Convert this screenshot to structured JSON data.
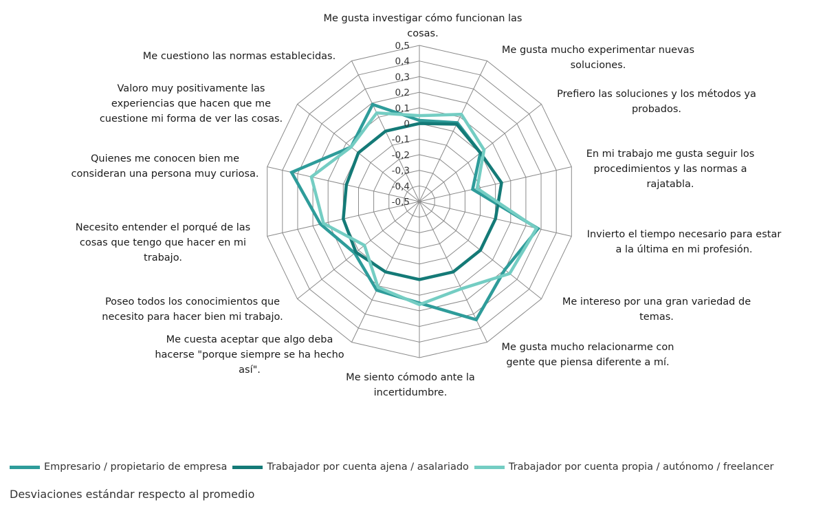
{
  "chart_data": {
    "type": "radar",
    "subtitle": "Desviaciones estándar respecto al promedio",
    "categories": [
      [
        "Me gusta investigar cómo funcionan las",
        "cosas."
      ],
      [
        "Me gusta mucho experimentar nuevas",
        "soluciones."
      ],
      [
        "Prefiero las soluciones y los métodos ya",
        "probados."
      ],
      [
        "En mi trabajo me gusta seguir los",
        "procedimientos y las normas a",
        "rajatabla."
      ],
      [
        "Invierto el tiempo necesario para estar",
        "a la última en mi profesión."
      ],
      [
        "Me intereso por una gran variedad de",
        "temas."
      ],
      [
        "Me gusta mucho relacionarme con",
        "gente que piensa diferente a mí."
      ],
      [
        "Me siento cómodo ante la",
        "incertidumbre."
      ],
      [
        "Me cuesta aceptar que algo deba",
        "hacerse \"porque siempre se ha hecho",
        "así\"."
      ],
      [
        "Poseo todos los conocimientos que",
        "necesito para hacer bien mi trabajo."
      ],
      [
        "Necesito entender el porqué de las",
        "cosas que tengo que hacer en mi",
        "trabajo."
      ],
      [
        "Quienes me conocen bien me",
        "consideran una persona muy curiosa."
      ],
      [
        "Valoro muy positivamente las",
        "experiencias que hacen que me",
        "cuestione mi forma de ver las cosas."
      ],
      [
        "Me cuestiono las normas establecidas."
      ]
    ],
    "rlim": [
      -0.5,
      0.5
    ],
    "ticks": [
      "0,5",
      "0,4",
      "0,3",
      "0,2",
      "0,1",
      "0",
      "-0,1",
      "-0,2",
      "-0,3",
      "-0,4",
      "-0,5"
    ],
    "tick_values": [
      0.5,
      0.4,
      0.3,
      0.2,
      0.1,
      0,
      -0.1,
      -0.2,
      -0.3,
      -0.4,
      -0.5
    ],
    "grid": true,
    "legend_position": "bottom",
    "series": [
      {
        "name": "Empresario / propietario de empresa",
        "color": "#2e9c9a",
        "values": [
          0.02,
          0.06,
          0.0,
          -0.15,
          0.28,
          0.2,
          0.34,
          0.15,
          0.13,
          0.03,
          0.15,
          0.34,
          0.06,
          0.19
        ]
      },
      {
        "name": "Trabajador por cuenta ajena / asalariado",
        "color": "#147a77",
        "values": [
          0.0,
          0.05,
          0.0,
          0.04,
          0.0,
          0.0,
          0.0,
          0.0,
          0.0,
          0.02,
          0.0,
          -0.02,
          0.0,
          0.0
        ]
      },
      {
        "name": "Trabajador por cuenta propia / autónomo / freelancer",
        "color": "#74cdc3",
        "values": [
          0.05,
          0.12,
          0.03,
          -0.12,
          0.27,
          0.24,
          0.12,
          0.16,
          0.11,
          -0.05,
          0.13,
          0.21,
          0.06,
          0.13
        ]
      }
    ]
  }
}
